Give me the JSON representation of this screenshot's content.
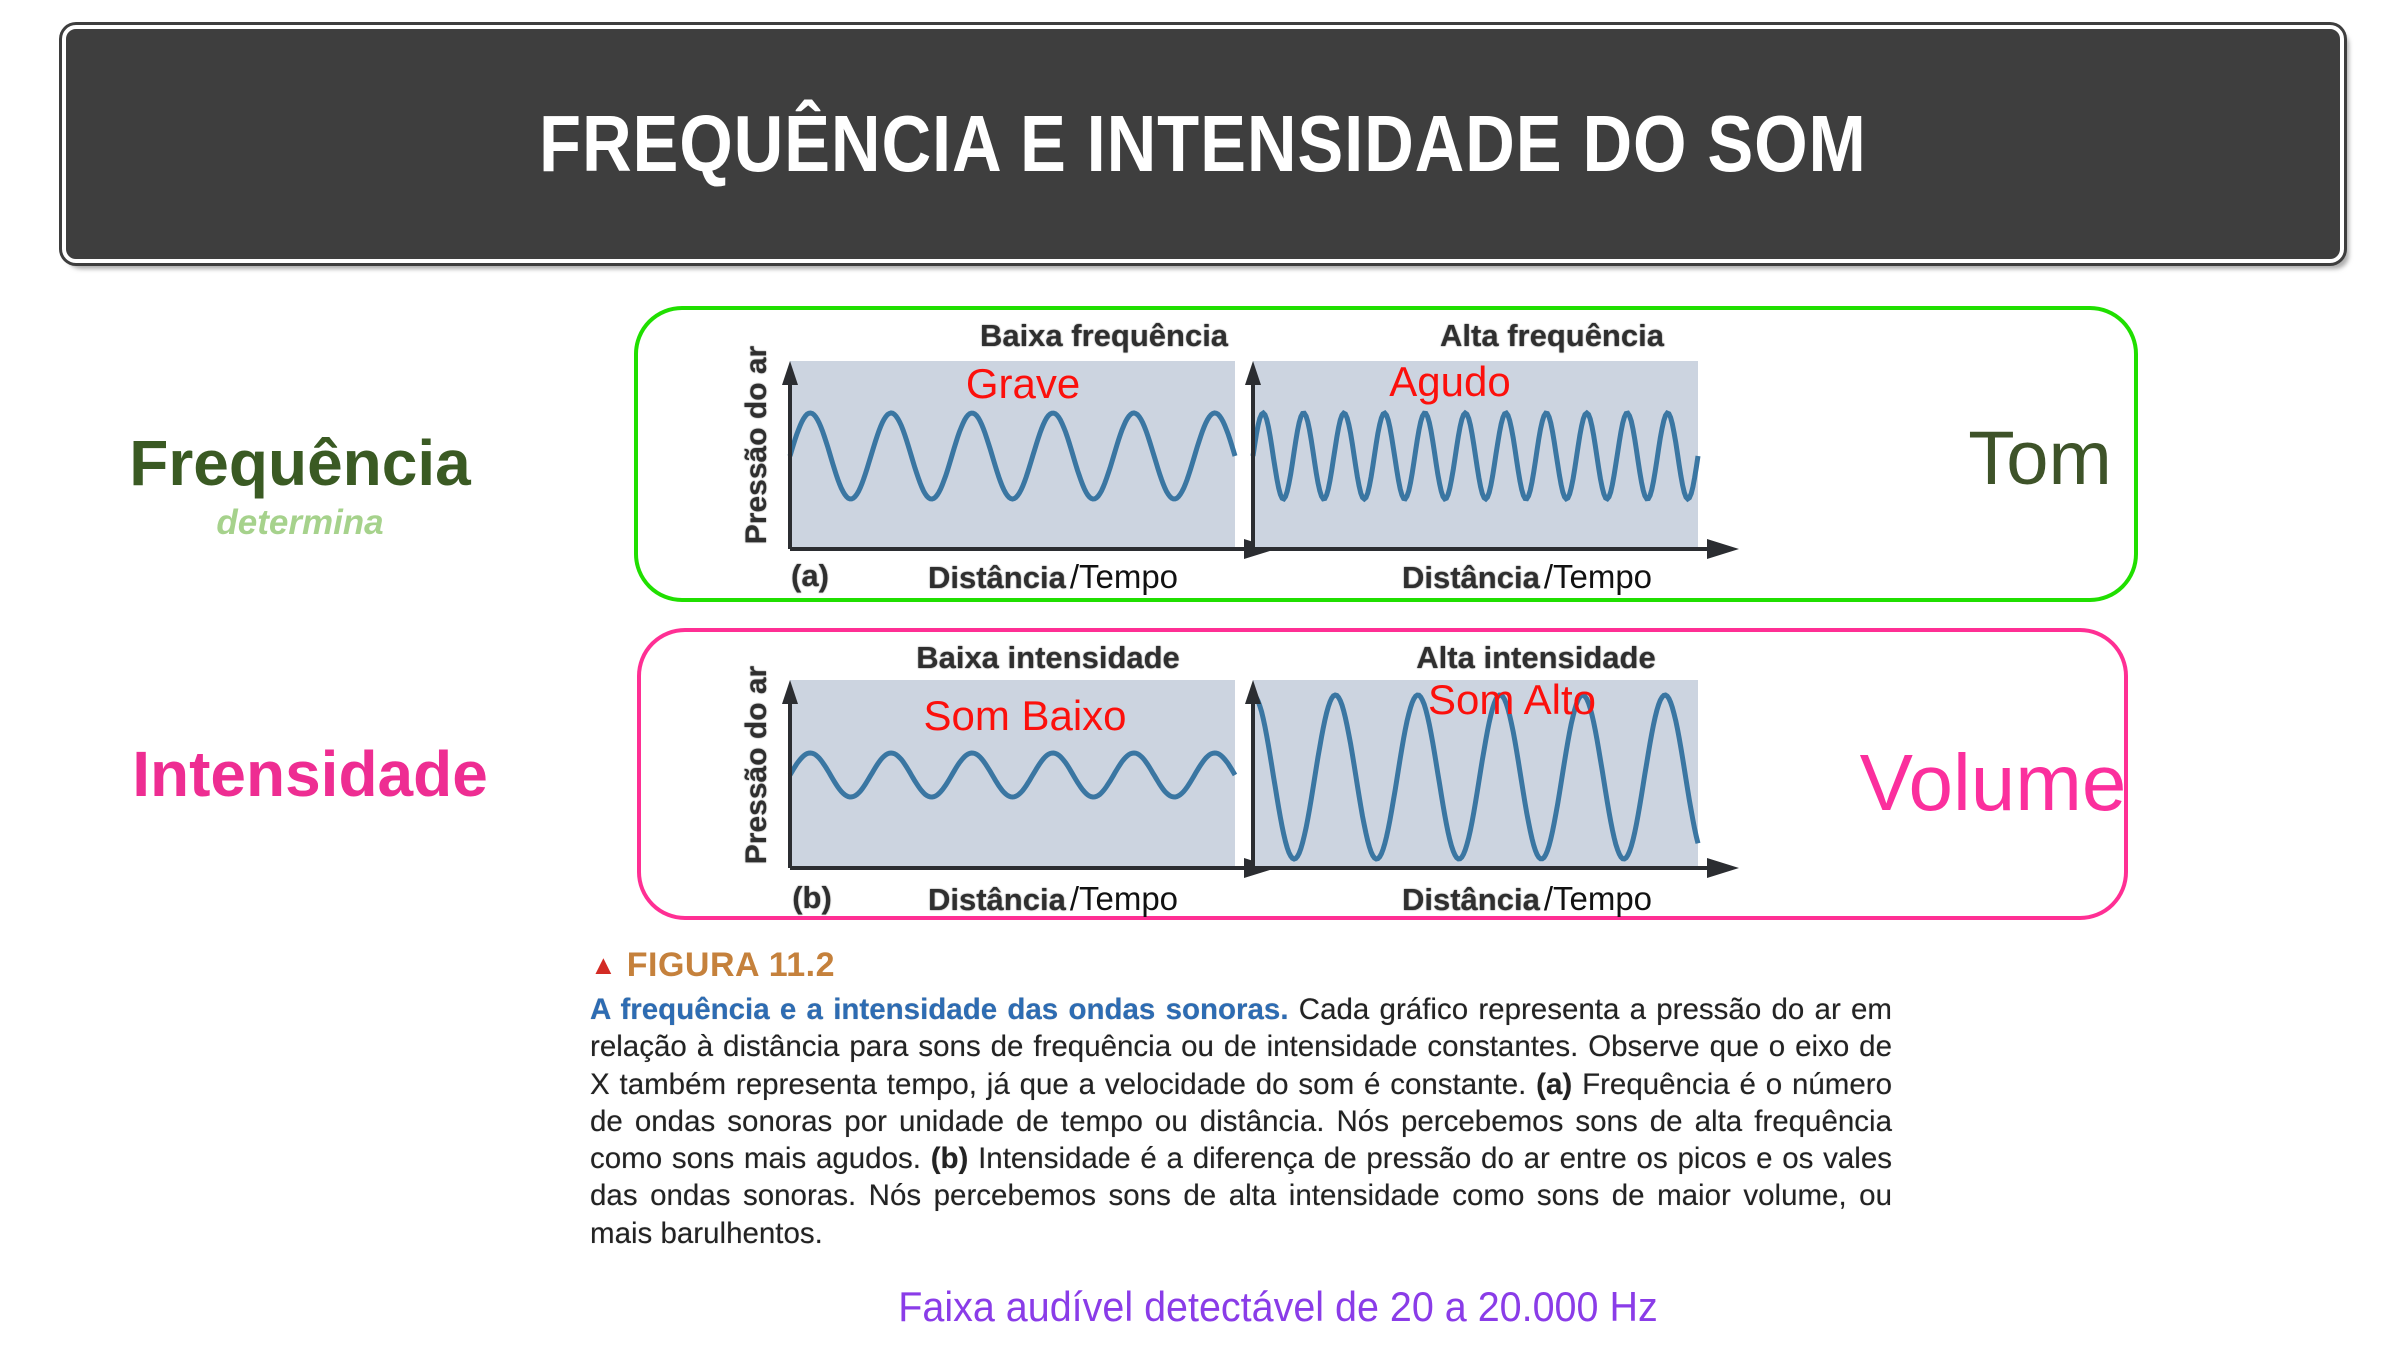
{
  "header": {
    "title": "FREQUÊNCIA E INTENSIDADE DO SOM"
  },
  "left": {
    "frequencia": "Frequência",
    "determina": "determina",
    "intensidade": "Intensidade"
  },
  "annotations": {
    "tom": "Tom",
    "volume": "Volume"
  },
  "footer": {
    "text": "Faixa audível detectável de 20 a 20.000 Hz"
  },
  "figure": {
    "marker": "▲",
    "label": "FIGURA 11.2",
    "caption_segments": [
      {
        "style": "lead",
        "text": "A frequência e a intensidade das ondas sonoras. "
      },
      {
        "style": "normal",
        "text": "Cada gráfico representa a pressão do ar em relação à distância para sons de frequência ou de intensidade constantes. Observe que o eixo de X também representa tempo, já que a velocidade do som é constante. "
      },
      {
        "style": "bold",
        "text": "(a)"
      },
      {
        "style": "normal",
        "text": " Frequência é o número de ondas sonoras por unidade de tempo ou distância. Nós percebemos sons de alta frequência como sons mais agudos. "
      },
      {
        "style": "bold",
        "text": "(b)"
      },
      {
        "style": "normal",
        "text": " Intensidade é a diferença de pressão do ar entre os picos e os vales das ondas sonoras. Nós percebemos sons de alta intensidade como sons de maior volume, ou mais barulhentos."
      }
    ],
    "panels": [
      {
        "tag": "(a)",
        "plots": [
          {
            "title": "Baixa frequência",
            "red_label": "Grave",
            "ylabel": "Pressão do ar",
            "xlabel_main": "Distância",
            "xlabel_overlay": "/Tempo",
            "wave": {
              "cycles": 5.5,
              "amplitude": 43,
              "midline": 111,
              "phase_deg": 0
            }
          },
          {
            "title": "Alta frequência",
            "red_label": "Agudo",
            "xlabel_main": "Distância",
            "xlabel_overlay": "/Tempo",
            "wave": {
              "cycles": 11,
              "amplitude": 43,
              "midline": 111,
              "phase_deg": 0
            }
          }
        ]
      },
      {
        "tag": "(b)",
        "plots": [
          {
            "title": "Baixa intensidade",
            "red_label": "Som Baixo",
            "ylabel": "Pressão do ar",
            "xlabel_main": "Distância",
            "xlabel_overlay": "/Tempo",
            "wave": {
              "cycles": 5.5,
              "amplitude": 22,
              "midline": 111,
              "phase_deg": 0
            }
          },
          {
            "title": "Alta intensidade",
            "red_label": "Som Alto",
            "xlabel_main": "Distância",
            "xlabel_overlay": "/Tempo",
            "wave": {
              "cycles": 5.4,
              "amplitude": 82,
              "midline": 113,
              "phase_deg": 90
            }
          }
        ]
      }
    ]
  },
  "colors": {
    "header_bg": "#3e3e3e",
    "panel_a_border": "#20df00",
    "panel_b_border": "#ff2f94",
    "red_label": "#fc100c",
    "wave_stroke": "#3a76a2",
    "plot_bg": "#ccd4e0",
    "frequencia": "#3a5a23",
    "determina": "#a6d28c",
    "intensidade": "#ee2d92",
    "tom": "#3e5329",
    "volume": "#fb2f9d",
    "footer_text": "#8a3ce8",
    "figura_label": "#c5813c",
    "caption_lead": "#2d6cb3"
  }
}
